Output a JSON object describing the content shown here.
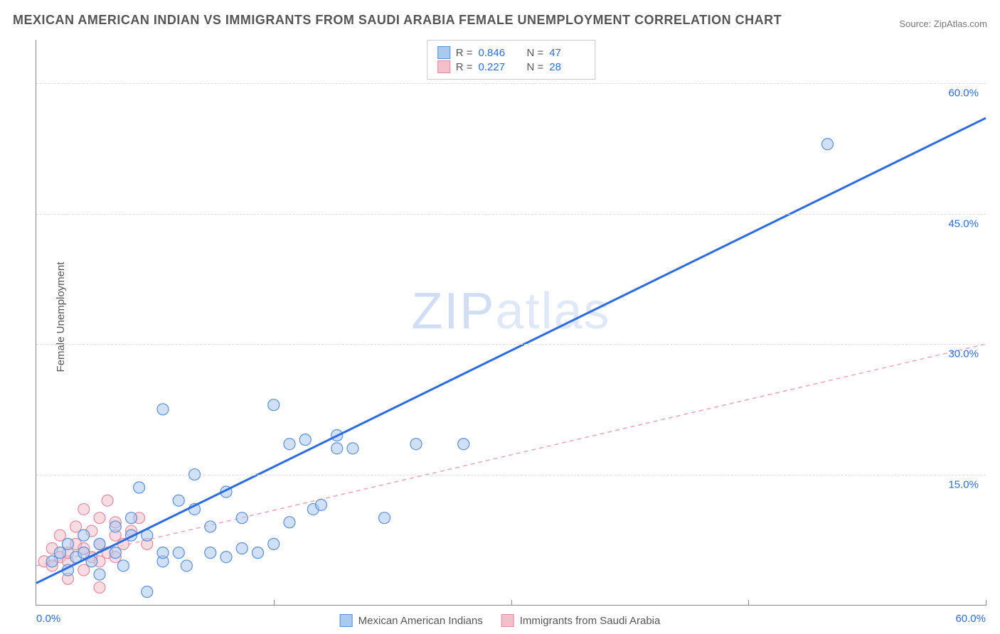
{
  "title": "MEXICAN AMERICAN INDIAN VS IMMIGRANTS FROM SAUDI ARABIA FEMALE UNEMPLOYMENT CORRELATION CHART",
  "source_label": "Source: ",
  "source_name": "ZipAtlas.com",
  "ylabel": "Female Unemployment",
  "watermark_a": "ZIP",
  "watermark_b": "atlas",
  "chart": {
    "type": "scatter",
    "xlim": [
      0,
      60
    ],
    "ylim": [
      0,
      65
    ],
    "xtick_min_label": "0.0%",
    "xtick_max_label": "60.0%",
    "yticks": [
      15,
      30,
      45,
      60
    ],
    "ytick_labels": [
      "15.0%",
      "30.0%",
      "45.0%",
      "60.0%"
    ],
    "xticks_major": [
      15,
      30,
      45,
      60
    ],
    "grid_color": "#dddddd",
    "axis_color": "#888888",
    "label_color": "#2b6cdf",
    "label_fontsize": 15,
    "title_fontsize": 18,
    "title_color": "#555555",
    "background_color": "#ffffff",
    "marker_radius": 8,
    "marker_opacity": 0.55,
    "marker_stroke_width": 1.2,
    "series": [
      {
        "name": "Mexican American Indians",
        "fill": "#a9c9f0",
        "stroke": "#5a8fd6",
        "line_color": "#2b6cdf",
        "line_width": 3,
        "line_dash": "none",
        "R_label": "R = ",
        "R_value": "0.846",
        "N_label": "N = ",
        "N_value": "47",
        "trend": {
          "x1": 0,
          "y1": 2.5,
          "x2": 60,
          "y2": 56
        },
        "points": [
          [
            1,
            5
          ],
          [
            1.5,
            6
          ],
          [
            2,
            4
          ],
          [
            2,
            7
          ],
          [
            2.5,
            5.5
          ],
          [
            3,
            6
          ],
          [
            3,
            8
          ],
          [
            3.5,
            5
          ],
          [
            4,
            7
          ],
          [
            4,
            3.5
          ],
          [
            5,
            6
          ],
          [
            5,
            9
          ],
          [
            5.5,
            4.5
          ],
          [
            6,
            8
          ],
          [
            6,
            10
          ],
          [
            6.5,
            13.5
          ],
          [
            7,
            8
          ],
          [
            7,
            1.5
          ],
          [
            8,
            5
          ],
          [
            8,
            6
          ],
          [
            8,
            22.5
          ],
          [
            9,
            6
          ],
          [
            9,
            12
          ],
          [
            9.5,
            4.5
          ],
          [
            10,
            11
          ],
          [
            10,
            15
          ],
          [
            11,
            6
          ],
          [
            11,
            9
          ],
          [
            12,
            5.5
          ],
          [
            12,
            13
          ],
          [
            13,
            6.5
          ],
          [
            13,
            10
          ],
          [
            14,
            6
          ],
          [
            15,
            7
          ],
          [
            15,
            23
          ],
          [
            16,
            18.5
          ],
          [
            16,
            9.5
          ],
          [
            17,
            19
          ],
          [
            17.5,
            11
          ],
          [
            18,
            11.5
          ],
          [
            19,
            19.5
          ],
          [
            19,
            18
          ],
          [
            20,
            18
          ],
          [
            22,
            10
          ],
          [
            24,
            18.5
          ],
          [
            27,
            18.5
          ],
          [
            50,
            53
          ]
        ]
      },
      {
        "name": "Immigrants from Saudi Arabia",
        "fill": "#f3bfca",
        "stroke": "#e38aa1",
        "line_color": "#e9a4b5",
        "line_width": 1.5,
        "line_dash": "6,5",
        "R_label": "R = ",
        "R_value": "0.227",
        "N_label": "N = ",
        "N_value": "28",
        "trend": {
          "x1": 0,
          "y1": 4.5,
          "x2": 60,
          "y2": 30
        },
        "points": [
          [
            0.5,
            5
          ],
          [
            1,
            4.5
          ],
          [
            1,
            6.5
          ],
          [
            1.5,
            5.5
          ],
          [
            1.5,
            8
          ],
          [
            2,
            5
          ],
          [
            2,
            6
          ],
          [
            2,
            3
          ],
          [
            2.5,
            7
          ],
          [
            2.5,
            9
          ],
          [
            3,
            4
          ],
          [
            3,
            6.5
          ],
          [
            3,
            11
          ],
          [
            3.5,
            5.5
          ],
          [
            3.5,
            8.5
          ],
          [
            4,
            5
          ],
          [
            4,
            7
          ],
          [
            4,
            10
          ],
          [
            4,
            2
          ],
          [
            4.5,
            6
          ],
          [
            4.5,
            12
          ],
          [
            5,
            5.5
          ],
          [
            5,
            8
          ],
          [
            5,
            9.5
          ],
          [
            5.5,
            7
          ],
          [
            6,
            8.5
          ],
          [
            6.5,
            10
          ],
          [
            7,
            7
          ]
        ]
      }
    ]
  }
}
